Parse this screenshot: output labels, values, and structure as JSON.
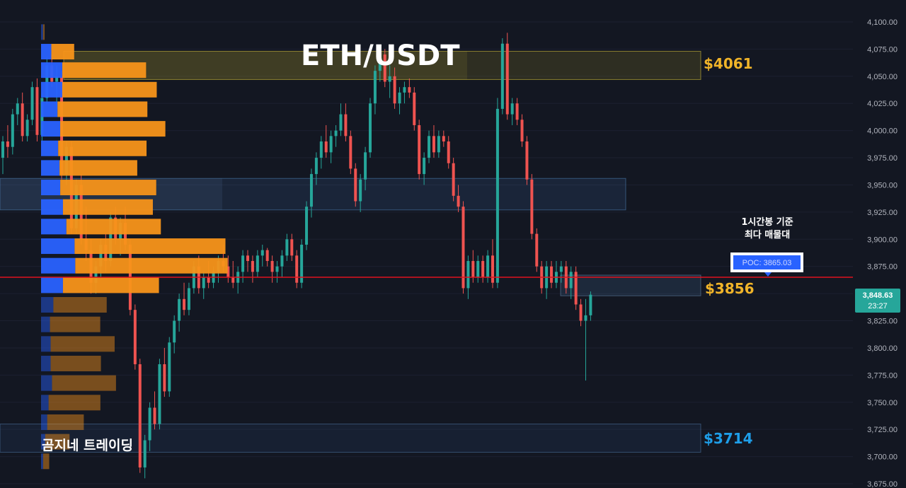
{
  "title": "ETH/USDT",
  "brand": "곰지네 트레이딩",
  "note": {
    "line1": "1시간봉 기준",
    "line2": "최다 매물대"
  },
  "poc_label": "POC: 3865.03",
  "price_tag": {
    "price": "3,848.63",
    "countdown": "23:27"
  },
  "levels": [
    {
      "label": "$4061",
      "color": "#f0b429"
    },
    {
      "label": "$3856",
      "color": "#f0b429"
    },
    {
      "label": "$3714",
      "color": "#1e9ee8"
    }
  ],
  "colors": {
    "up": "#26a69a",
    "down": "#ef5350",
    "poc_line": "#e0121e",
    "vp_buy": "#2962ff",
    "vp_sell": "#f7931a"
  },
  "chart_data": {
    "type": "candlestick",
    "y_axis": {
      "min": 3675,
      "max": 4100,
      "side": "right",
      "ticks": [
        "4,100.00",
        "4,075.00",
        "4,050.00",
        "4,025.00",
        "4,000.00",
        "3,975.00",
        "3,950.00",
        "3,925.00",
        "3,900.00",
        "3,875.00",
        "3,850.00",
        "3,825.00",
        "3,800.00",
        "3,775.00",
        "3,750.00",
        "3,725.00",
        "3,700.00",
        "3,675.00"
      ]
    },
    "zones": [
      {
        "from": 4047,
        "to": 4073,
        "kind": "resistance",
        "level": "$4061"
      },
      {
        "from": 3927,
        "to": 3956,
        "kind": "range"
      },
      {
        "from": 3848,
        "to": 3867,
        "kind": "poc",
        "level": "$3856"
      },
      {
        "from": 3704,
        "to": 3730,
        "kind": "support",
        "level": "$3714"
      }
    ],
    "poc": 3865.03,
    "last_price": 3848.63,
    "volume_profile": [
      {
        "price": 4090,
        "buy": 0.03,
        "sell": 0.01
      },
      {
        "price": 4072,
        "buy": 0.15,
        "sell": 0.15
      },
      {
        "price": 4055,
        "buy": 0.31,
        "sell": 0.55
      },
      {
        "price": 4037,
        "buy": 0.31,
        "sell": 0.62
      },
      {
        "price": 4019,
        "buy": 0.24,
        "sell": 0.59
      },
      {
        "price": 4001,
        "buy": 0.28,
        "sell": 0.69
      },
      {
        "price": 3983,
        "buy": 0.25,
        "sell": 0.58
      },
      {
        "price": 3965,
        "buy": 0.27,
        "sell": 0.51
      },
      {
        "price": 3947,
        "buy": 0.28,
        "sell": 0.63
      },
      {
        "price": 3929,
        "buy": 0.32,
        "sell": 0.59
      },
      {
        "price": 3911,
        "buy": 0.37,
        "sell": 0.62
      },
      {
        "price": 3893,
        "buy": 0.49,
        "sell": 0.99
      },
      {
        "price": 3875,
        "buy": 0.5,
        "sell": 1.0
      },
      {
        "price": 3857,
        "buy": 0.32,
        "sell": 0.63
      },
      {
        "price": 3839,
        "buy": 0.18,
        "sell": 0.35
      },
      {
        "price": 3821,
        "buy": 0.13,
        "sell": 0.33
      },
      {
        "price": 3803,
        "buy": 0.14,
        "sell": 0.42
      },
      {
        "price": 3785,
        "buy": 0.14,
        "sell": 0.33
      },
      {
        "price": 3767,
        "buy": 0.16,
        "sell": 0.42
      },
      {
        "price": 3749,
        "buy": 0.11,
        "sell": 0.34
      },
      {
        "price": 3731,
        "buy": 0.09,
        "sell": 0.24
      },
      {
        "price": 3713,
        "buy": 0.06,
        "sell": 0.16
      },
      {
        "price": 3695,
        "buy": 0.03,
        "sell": 0.04
      }
    ],
    "candles": [
      [
        3975,
        3995,
        3960,
        3990
      ],
      [
        3990,
        4005,
        3975,
        3985
      ],
      [
        3985,
        4020,
        3978,
        4015
      ],
      [
        4015,
        4030,
        4005,
        4025
      ],
      [
        4025,
        4035,
        3990,
        3995
      ],
      [
        3995,
        4015,
        3990,
        4010
      ],
      [
        4010,
        4045,
        4005,
        4040
      ],
      [
        4040,
        4048,
        3990,
        3996
      ],
      [
        3996,
        4035,
        3990,
        4030
      ],
      [
        4030,
        4068,
        4025,
        4060
      ],
      [
        4060,
        4070,
        4040,
        4045
      ],
      [
        4045,
        4060,
        4020,
        4050
      ],
      [
        4050,
        4055,
        3955,
        3960
      ],
      [
        3960,
        3990,
        3950,
        3985
      ],
      [
        3985,
        3990,
        3905,
        3910
      ],
      [
        3910,
        3955,
        3905,
        3950
      ],
      [
        3950,
        3960,
        3895,
        3900
      ],
      [
        3900,
        3930,
        3880,
        3890
      ],
      [
        3890,
        3900,
        3850,
        3860
      ],
      [
        3860,
        3880,
        3850,
        3875
      ],
      [
        3875,
        3900,
        3865,
        3895
      ],
      [
        3895,
        3905,
        3870,
        3880
      ],
      [
        3880,
        3925,
        3875,
        3920
      ],
      [
        3920,
        3930,
        3895,
        3900
      ],
      [
        3900,
        3920,
        3885,
        3915
      ],
      [
        3915,
        3930,
        3890,
        3895
      ],
      [
        3895,
        3900,
        3830,
        3835
      ],
      [
        3835,
        3840,
        3780,
        3785
      ],
      [
        3785,
        3790,
        3685,
        3690
      ],
      [
        3690,
        3720,
        3680,
        3715
      ],
      [
        3715,
        3750,
        3705,
        3745
      ],
      [
        3745,
        3760,
        3725,
        3730
      ],
      [
        3730,
        3790,
        3725,
        3785
      ],
      [
        3785,
        3800,
        3755,
        3760
      ],
      [
        3760,
        3810,
        3755,
        3805
      ],
      [
        3805,
        3830,
        3795,
        3825
      ],
      [
        3825,
        3850,
        3815,
        3845
      ],
      [
        3845,
        3860,
        3830,
        3835
      ],
      [
        3835,
        3860,
        3830,
        3855
      ],
      [
        3855,
        3880,
        3850,
        3875
      ],
      [
        3875,
        3885,
        3850,
        3855
      ],
      [
        3855,
        3870,
        3845,
        3865
      ],
      [
        3865,
        3880,
        3855,
        3860
      ],
      [
        3860,
        3875,
        3855,
        3870
      ],
      [
        3870,
        3885,
        3860,
        3880
      ],
      [
        3880,
        3895,
        3870,
        3875
      ],
      [
        3875,
        3885,
        3860,
        3865
      ],
      [
        3865,
        3880,
        3855,
        3860
      ],
      [
        3860,
        3875,
        3850,
        3870
      ],
      [
        3870,
        3890,
        3860,
        3885
      ],
      [
        3885,
        3890,
        3870,
        3880
      ],
      [
        3880,
        3885,
        3860,
        3870
      ],
      [
        3870,
        3890,
        3865,
        3885
      ],
      [
        3885,
        3895,
        3875,
        3890
      ],
      [
        3890,
        3892,
        3875,
        3880
      ],
      [
        3880,
        3885,
        3860,
        3870
      ],
      [
        3870,
        3880,
        3860,
        3875
      ],
      [
        3875,
        3890,
        3865,
        3885
      ],
      [
        3885,
        3905,
        3880,
        3900
      ],
      [
        3900,
        3905,
        3880,
        3885
      ],
      [
        3885,
        3890,
        3855,
        3860
      ],
      [
        3860,
        3900,
        3855,
        3895
      ],
      [
        3895,
        3935,
        3890,
        3930
      ],
      [
        3930,
        3965,
        3920,
        3960
      ],
      [
        3960,
        3980,
        3950,
        3975
      ],
      [
        3975,
        3995,
        3965,
        3990
      ],
      [
        3990,
        4005,
        3975,
        3980
      ],
      [
        3980,
        4000,
        3970,
        3995
      ],
      [
        3995,
        4005,
        3985,
        4000
      ],
      [
        4000,
        4025,
        3995,
        4015
      ],
      [
        4015,
        4025,
        3990,
        3995
      ],
      [
        3995,
        4000,
        3960,
        3965
      ],
      [
        3965,
        3970,
        3930,
        3935
      ],
      [
        3935,
        3960,
        3925,
        3955
      ],
      [
        3955,
        3985,
        3945,
        3980
      ],
      [
        3980,
        4030,
        3975,
        4025
      ],
      [
        4025,
        4060,
        4015,
        4055
      ],
      [
        4055,
        4075,
        4045,
        4070
      ],
      [
        4070,
        4075,
        4040,
        4045
      ],
      [
        4045,
        4060,
        4030,
        4050
      ],
      [
        4050,
        4058,
        4020,
        4025
      ],
      [
        4025,
        4040,
        4015,
        4035
      ],
      [
        4035,
        4045,
        4025,
        4040
      ],
      [
        4040,
        4048,
        4030,
        4035
      ],
      [
        4035,
        4040,
        4000,
        4005
      ],
      [
        4005,
        4010,
        3955,
        3960
      ],
      [
        3960,
        3980,
        3950,
        3975
      ],
      [
        3975,
        4000,
        3970,
        3995
      ],
      [
        3995,
        4005,
        3975,
        3980
      ],
      [
        3980,
        4000,
        3975,
        3995
      ],
      [
        3995,
        4000,
        3985,
        3990
      ],
      [
        3990,
        3995,
        3965,
        3970
      ],
      [
        3970,
        3975,
        3935,
        3940
      ],
      [
        3940,
        3950,
        3925,
        3930
      ],
      [
        3930,
        3935,
        3850,
        3855
      ],
      [
        3855,
        3885,
        3845,
        3880
      ],
      [
        3880,
        3890,
        3860,
        3865
      ],
      [
        3865,
        3885,
        3860,
        3880
      ],
      [
        3880,
        3885,
        3860,
        3865
      ],
      [
        3865,
        3890,
        3860,
        3885
      ],
      [
        3885,
        3900,
        3855,
        3860
      ],
      [
        3860,
        4030,
        3855,
        4020
      ],
      [
        4020,
        4085,
        4015,
        4080
      ],
      [
        4080,
        4090,
        4010,
        4015
      ],
      [
        4015,
        4030,
        4005,
        4025
      ],
      [
        4025,
        4030,
        4005,
        4010
      ],
      [
        4010,
        4015,
        3985,
        3990
      ],
      [
        3990,
        3995,
        3950,
        3955
      ],
      [
        3955,
        3960,
        3900,
        3905
      ],
      [
        3905,
        3910,
        3870,
        3875
      ],
      [
        3875,
        3880,
        3850,
        3855
      ],
      [
        3855,
        3880,
        3845,
        3875
      ],
      [
        3875,
        3880,
        3855,
        3860
      ],
      [
        3860,
        3880,
        3855,
        3870
      ],
      [
        3870,
        3880,
        3860,
        3875
      ],
      [
        3875,
        3880,
        3850,
        3855
      ],
      [
        3855,
        3875,
        3845,
        3870
      ],
      [
        3870,
        3875,
        3835,
        3840
      ],
      [
        3840,
        3845,
        3820,
        3825
      ],
      [
        3825,
        3845,
        3770,
        3830
      ],
      [
        3830,
        3852,
        3825,
        3849
      ]
    ]
  }
}
